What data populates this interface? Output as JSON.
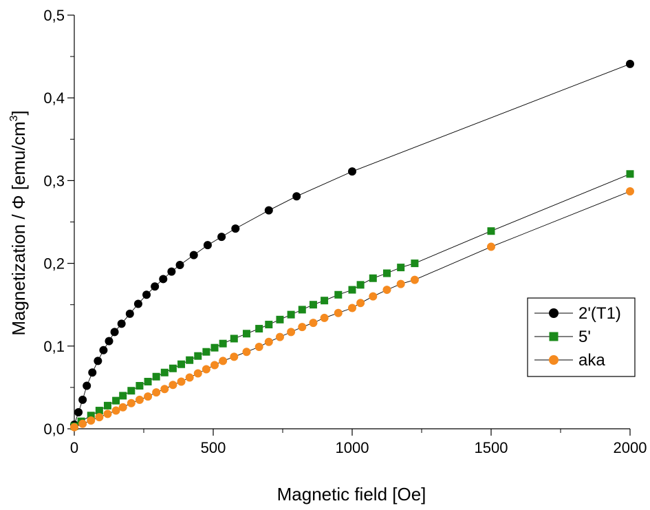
{
  "chart_data": {
    "type": "scatter",
    "xlabel": "Magnetic field [Oe]",
    "ylabel": {
      "prefix": "Magnetization / Φ [emu/cm",
      "superscript": "3",
      "suffix": "]"
    },
    "xlim": [
      0,
      2000
    ],
    "ylim": [
      0,
      0.5
    ],
    "x_ticks": [
      "0",
      "500",
      "1000",
      "1500",
      "2000"
    ],
    "y_ticks": [
      "0,0",
      "0,1",
      "0,2",
      "0,3",
      "0,4",
      "0,5"
    ],
    "grid": false,
    "legend_position": "right",
    "series": [
      {
        "name": "2'(T1)",
        "color": "#000000",
        "marker": "circle",
        "x": [
          0,
          15,
          30,
          45,
          65,
          85,
          105,
          125,
          145,
          170,
          200,
          230,
          260,
          290,
          320,
          350,
          380,
          430,
          480,
          530,
          580,
          700,
          800,
          1000,
          2000
        ],
        "y": [
          0.005,
          0.02,
          0.035,
          0.052,
          0.068,
          0.082,
          0.095,
          0.106,
          0.117,
          0.127,
          0.139,
          0.151,
          0.162,
          0.172,
          0.181,
          0.19,
          0.198,
          0.21,
          0.222,
          0.232,
          0.242,
          0.264,
          0.281,
          0.311,
          0.441
        ]
      },
      {
        "name": "5'",
        "color": "#1a8a1a",
        "marker": "square",
        "x": [
          0,
          25,
          60,
          90,
          120,
          150,
          175,
          205,
          235,
          265,
          295,
          325,
          355,
          385,
          415,
          445,
          475,
          505,
          535,
          575,
          620,
          665,
          700,
          740,
          780,
          820,
          860,
          900,
          950,
          1000,
          1030,
          1075,
          1125,
          1175,
          1225,
          1500,
          2000
        ],
        "y": [
          0.003,
          0.009,
          0.016,
          0.022,
          0.028,
          0.034,
          0.04,
          0.046,
          0.052,
          0.057,
          0.063,
          0.068,
          0.073,
          0.078,
          0.083,
          0.088,
          0.093,
          0.098,
          0.103,
          0.109,
          0.115,
          0.121,
          0.126,
          0.132,
          0.138,
          0.144,
          0.15,
          0.155,
          0.162,
          0.168,
          0.174,
          0.182,
          0.188,
          0.195,
          0.2,
          0.239,
          0.308
        ]
      },
      {
        "name": "aka",
        "color": "#f58a1f",
        "marker": "circle",
        "x": [
          0,
          30,
          60,
          90,
          120,
          150,
          175,
          205,
          235,
          265,
          295,
          325,
          355,
          385,
          415,
          445,
          475,
          505,
          535,
          575,
          620,
          665,
          700,
          740,
          780,
          820,
          860,
          900,
          950,
          1000,
          1030,
          1075,
          1125,
          1175,
          1225,
          1500,
          2000
        ],
        "y": [
          0.002,
          0.006,
          0.01,
          0.014,
          0.018,
          0.022,
          0.026,
          0.031,
          0.035,
          0.039,
          0.044,
          0.048,
          0.053,
          0.057,
          0.062,
          0.067,
          0.072,
          0.077,
          0.082,
          0.087,
          0.093,
          0.099,
          0.105,
          0.111,
          0.117,
          0.123,
          0.128,
          0.134,
          0.14,
          0.146,
          0.152,
          0.16,
          0.168,
          0.175,
          0.18,
          0.22,
          0.287
        ]
      }
    ]
  }
}
